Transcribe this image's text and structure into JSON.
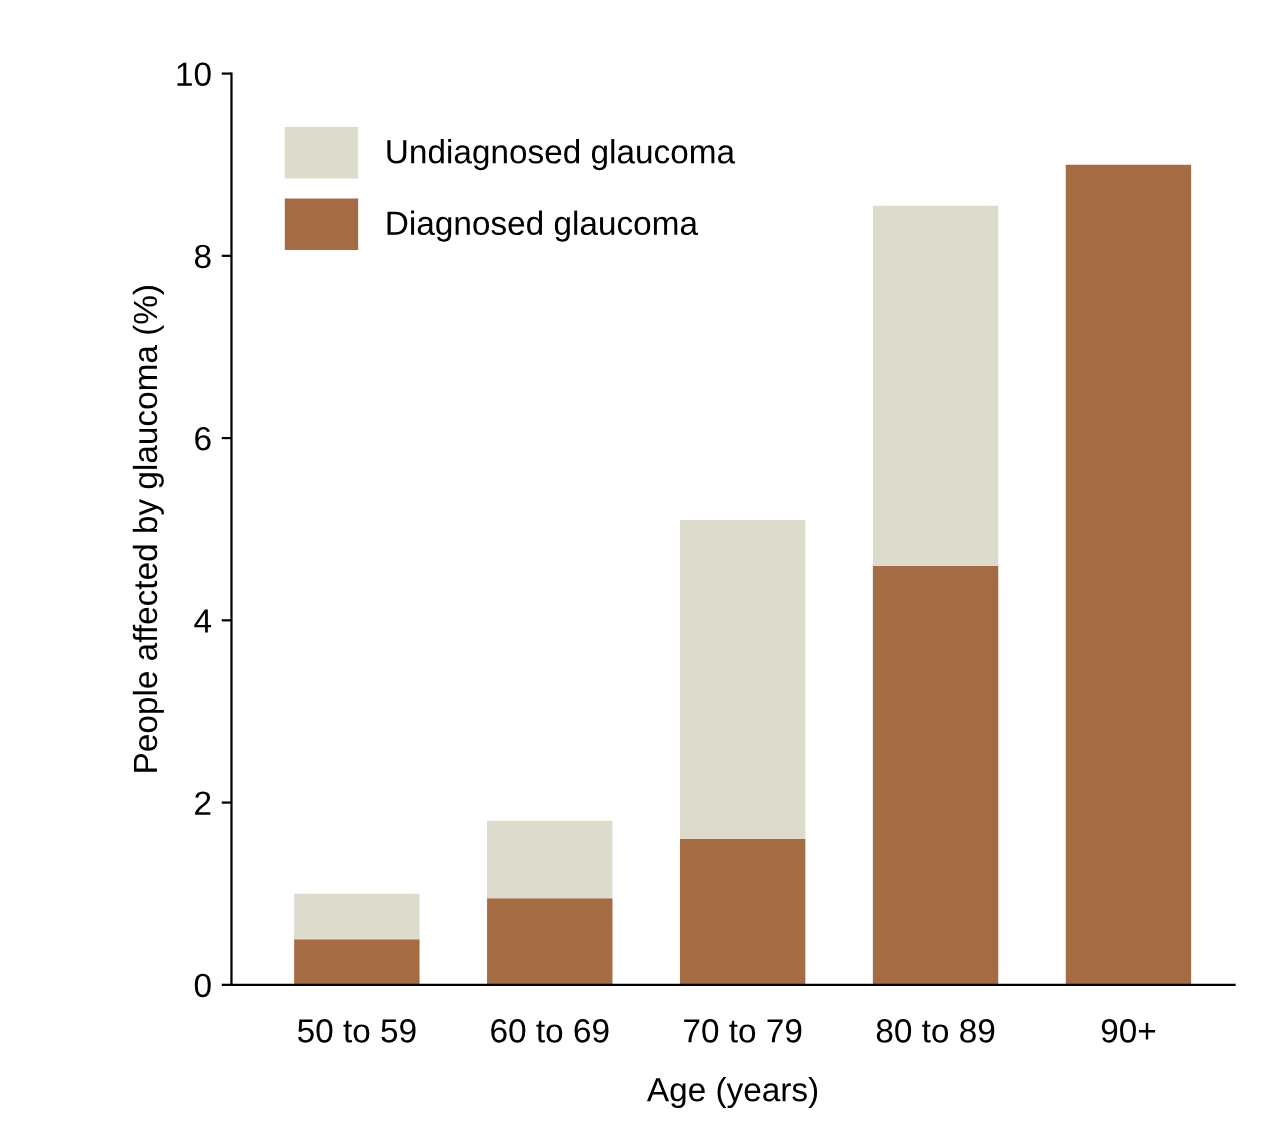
{
  "chart_data": {
    "type": "bar",
    "stacked": true,
    "xlabel": "Age (years)",
    "ylabel": "People affected by glaucoma (%)",
    "categories": [
      "50 to 59",
      "60 to 69",
      "70 to 79",
      "80 to 89",
      "90+"
    ],
    "series": [
      {
        "name": "Diagnosed glaucoma",
        "color": "#a56b42",
        "values": [
          0.5,
          0.95,
          1.6,
          4.6,
          9.0
        ]
      },
      {
        "name": "Undiagnosed glaucoma",
        "color": "#dcdbcc",
        "values": [
          0.5,
          0.85,
          3.5,
          3.95,
          0
        ]
      }
    ],
    "ylim": [
      0,
      10
    ],
    "yticks": [
      0,
      2,
      4,
      6,
      8,
      10
    ],
    "grid": false,
    "legend": "top left"
  }
}
